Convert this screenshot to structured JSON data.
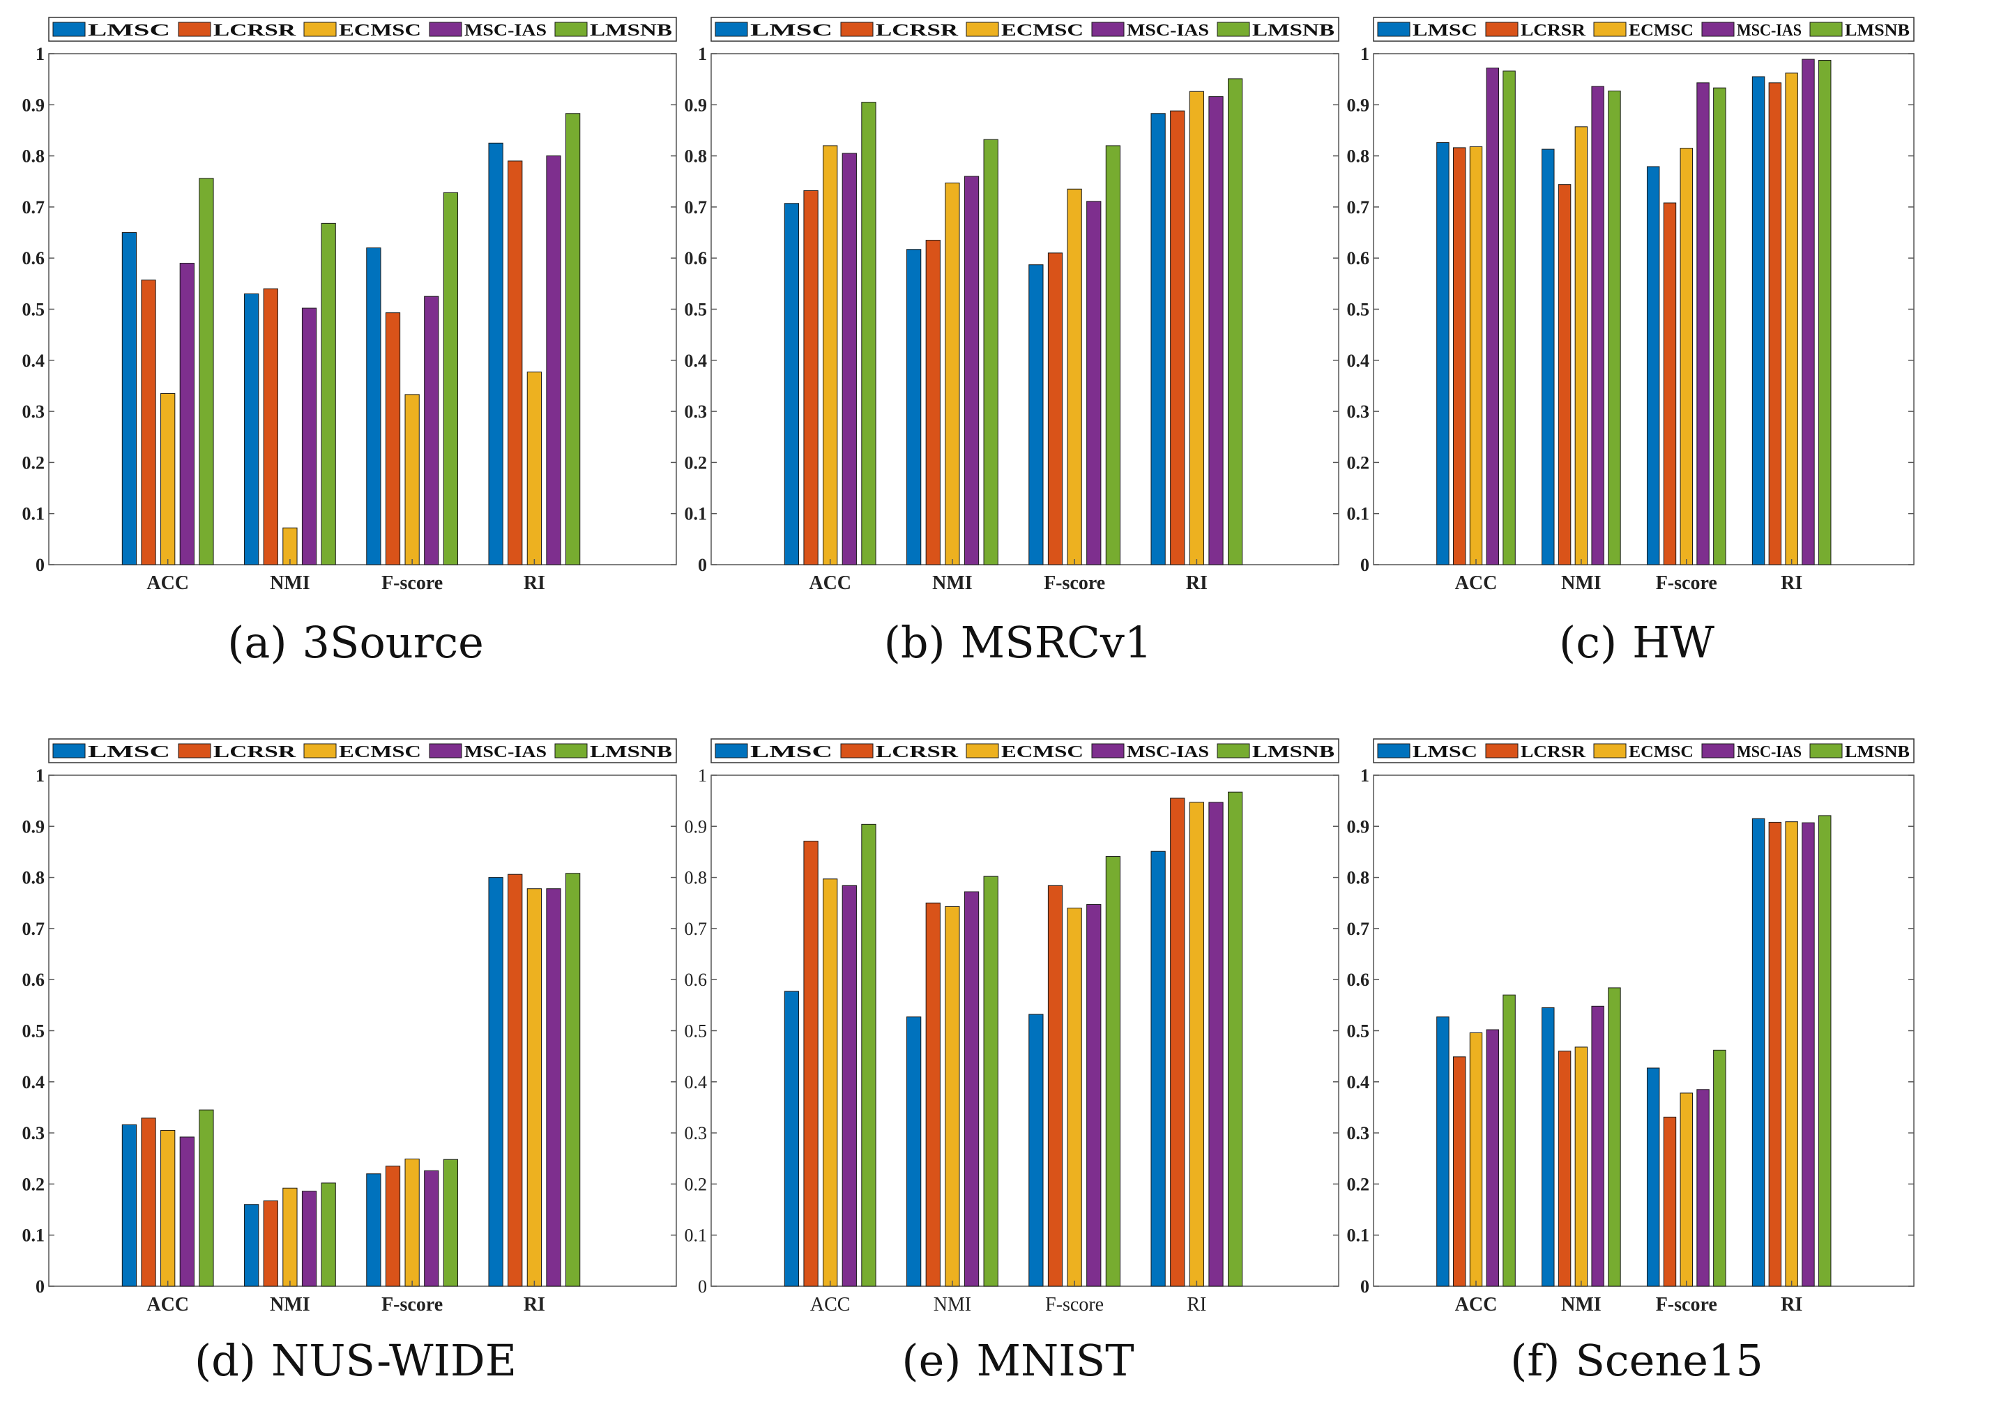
{
  "legend": [
    "LMSC",
    "LCRSR",
    "ECMSC",
    "MSC-IAS",
    "LMSNB"
  ],
  "colors": [
    "#0072BD",
    "#D95319",
    "#EDB120",
    "#7E2F8E",
    "#77AC30"
  ],
  "chart_data": [
    {
      "type": "bar",
      "letter": "(a)",
      "title": "3Source",
      "categories": [
        "ACC",
        "NMI",
        "F-score",
        "RI"
      ],
      "ylim": [
        0,
        1
      ],
      "yticks": [
        "0",
        "0.1",
        "0.2",
        "0.3",
        "0.4",
        "0.5",
        "0.6",
        "0.7",
        "0.8",
        "0.9",
        "1"
      ],
      "series": [
        {
          "name": "LMSC",
          "values": [
            0.65,
            0.53,
            0.62,
            0.825
          ]
        },
        {
          "name": "LCRSR",
          "values": [
            0.557,
            0.54,
            0.493,
            0.79
          ]
        },
        {
          "name": "ECMSC",
          "values": [
            0.335,
            0.072,
            0.333,
            0.377
          ]
        },
        {
          "name": "MSC-IAS",
          "values": [
            0.59,
            0.502,
            0.525,
            0.8
          ]
        },
        {
          "name": "LMSNB",
          "values": [
            0.756,
            0.668,
            0.728,
            0.883
          ]
        }
      ]
    },
    {
      "type": "bar",
      "letter": "(b)",
      "title": "MSRCv1",
      "categories": [
        "ACC",
        "NMI",
        "F-score",
        "RI"
      ],
      "ylim": [
        0,
        1
      ],
      "yticks": [
        "0",
        "0.1",
        "0.2",
        "0.3",
        "0.4",
        "0.5",
        "0.6",
        "0.7",
        "0.8",
        "0.9",
        "1"
      ],
      "series": [
        {
          "name": "LMSC",
          "values": [
            0.707,
            0.617,
            0.587,
            0.883
          ]
        },
        {
          "name": "LCRSR",
          "values": [
            0.732,
            0.635,
            0.61,
            0.888
          ]
        },
        {
          "name": "ECMSC",
          "values": [
            0.82,
            0.747,
            0.735,
            0.926
          ]
        },
        {
          "name": "MSC-IAS",
          "values": [
            0.805,
            0.76,
            0.711,
            0.916
          ]
        },
        {
          "name": "LMSNB",
          "values": [
            0.905,
            0.832,
            0.82,
            0.951
          ]
        }
      ]
    },
    {
      "type": "bar",
      "letter": "(c)",
      "title": "HW",
      "categories": [
        "ACC",
        "NMI",
        "F-score",
        "RI"
      ],
      "ylim": [
        0,
        1
      ],
      "yticks": [
        "0",
        "0.1",
        "0.2",
        "0.3",
        "0.4",
        "0.5",
        "0.6",
        "0.7",
        "0.8",
        "0.9",
        "1"
      ],
      "series": [
        {
          "name": "LMSC",
          "values": [
            0.826,
            0.813,
            0.779,
            0.955
          ]
        },
        {
          "name": "LCRSR",
          "values": [
            0.816,
            0.744,
            0.708,
            0.943
          ]
        },
        {
          "name": "ECMSC",
          "values": [
            0.818,
            0.857,
            0.815,
            0.962
          ]
        },
        {
          "name": "MSC-IAS",
          "values": [
            0.972,
            0.936,
            0.943,
            0.989
          ]
        },
        {
          "name": "LMSNB",
          "values": [
            0.966,
            0.927,
            0.933,
            0.987
          ]
        }
      ]
    },
    {
      "type": "bar",
      "letter": "(d)",
      "title": "NUS-WIDE",
      "categories": [
        "ACC",
        "NMI",
        "F-score",
        "RI"
      ],
      "ylim": [
        0,
        1
      ],
      "yticks": [
        "0",
        "0.1",
        "0.2",
        "0.3",
        "0.4",
        "0.5",
        "0.6",
        "0.7",
        "0.8",
        "0.9",
        "1"
      ],
      "series": [
        {
          "name": "LMSC",
          "values": [
            0.316,
            0.16,
            0.22,
            0.8
          ]
        },
        {
          "name": "LCRSR",
          "values": [
            0.329,
            0.167,
            0.235,
            0.806
          ]
        },
        {
          "name": "ECMSC",
          "values": [
            0.305,
            0.192,
            0.249,
            0.778
          ]
        },
        {
          "name": "MSC-IAS",
          "values": [
            0.292,
            0.186,
            0.226,
            0.778
          ]
        },
        {
          "name": "LMSNB",
          "values": [
            0.345,
            0.202,
            0.248,
            0.808
          ]
        }
      ]
    },
    {
      "type": "bar",
      "letter": "(e)",
      "title": "MNIST",
      "categories": [
        "ACC",
        "NMI",
        "F-score",
        "RI"
      ],
      "ylim": [
        0,
        1
      ],
      "yticks": [
        "0",
        "0.1",
        "0.2",
        "0.3",
        "0.4",
        "0.5",
        "0.6",
        "0.7",
        "0.8",
        "0.9",
        "1"
      ],
      "series": [
        {
          "name": "LMSC",
          "values": [
            0.577,
            0.527,
            0.532,
            0.851
          ]
        },
        {
          "name": "LCRSR",
          "values": [
            0.871,
            0.75,
            0.784,
            0.955
          ]
        },
        {
          "name": "ECMSC",
          "values": [
            0.797,
            0.743,
            0.74,
            0.947
          ]
        },
        {
          "name": "MSC-IAS",
          "values": [
            0.784,
            0.772,
            0.747,
            0.947
          ]
        },
        {
          "name": "LMSNB",
          "values": [
            0.904,
            0.802,
            0.841,
            0.967
          ]
        }
      ]
    },
    {
      "type": "bar",
      "letter": "(f)",
      "title": "Scene15",
      "categories": [
        "ACC",
        "NMI",
        "F-score",
        "RI"
      ],
      "ylim": [
        0,
        1
      ],
      "yticks": [
        "0",
        "0.1",
        "0.2",
        "0.3",
        "0.4",
        "0.5",
        "0.6",
        "0.7",
        "0.8",
        "0.9",
        "1"
      ],
      "series": [
        {
          "name": "LMSC",
          "values": [
            0.527,
            0.545,
            0.427,
            0.915
          ]
        },
        {
          "name": "LCRSR",
          "values": [
            0.449,
            0.46,
            0.331,
            0.908
          ]
        },
        {
          "name": "ECMSC",
          "values": [
            0.496,
            0.468,
            0.378,
            0.909
          ]
        },
        {
          "name": "MSC-IAS",
          "values": [
            0.502,
            0.548,
            0.385,
            0.907
          ]
        },
        {
          "name": "LMSNB",
          "values": [
            0.57,
            0.584,
            0.462,
            0.921
          ]
        }
      ]
    }
  ]
}
